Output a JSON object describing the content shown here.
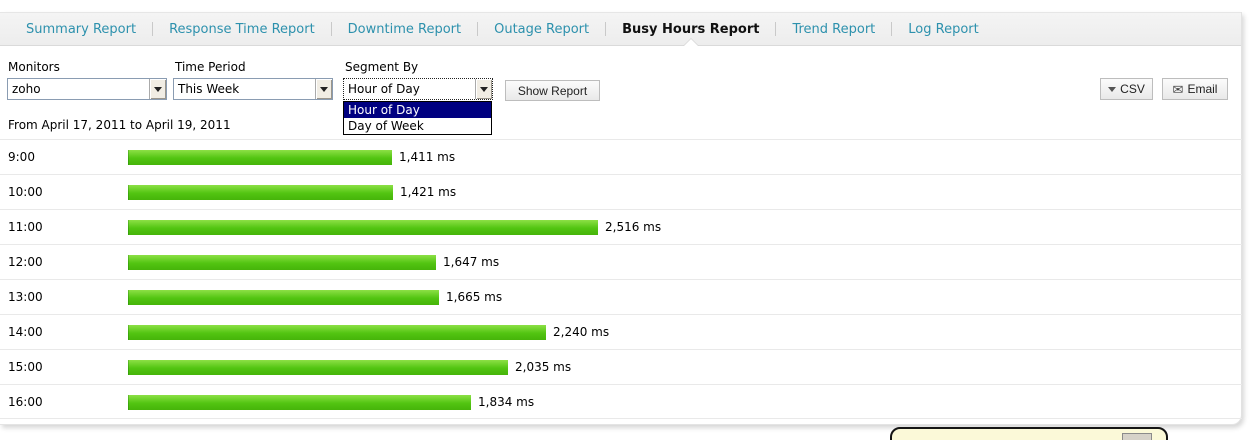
{
  "nav": {
    "tabs": [
      {
        "label": "Summary Report",
        "active": false
      },
      {
        "label": "Response Time Report",
        "active": false
      },
      {
        "label": "Downtime Report",
        "active": false
      },
      {
        "label": "Outage Report",
        "active": false
      },
      {
        "label": "Busy Hours Report",
        "active": true
      },
      {
        "label": "Trend Report",
        "active": false
      },
      {
        "label": "Log Report",
        "active": false
      }
    ]
  },
  "toolbar": {
    "monitors": {
      "label": "Monitors",
      "value": "zoho"
    },
    "time_period": {
      "label": "Time Period",
      "value": "This Week"
    },
    "segment_by": {
      "label": "Segment By",
      "value": "Hour of Day",
      "open": true,
      "options": [
        {
          "label": "Hour of Day",
          "selected": true
        },
        {
          "label": "Day of Week",
          "selected": false
        }
      ]
    },
    "show_report_label": "Show Report",
    "csv_label": "CSV",
    "email_label": "Email"
  },
  "date_range": "From April 17, 2011 to April 19, 2011",
  "chart_data": {
    "type": "bar",
    "orientation": "horizontal",
    "categories": [
      "9:00",
      "10:00",
      "11:00",
      "12:00",
      "13:00",
      "14:00",
      "15:00",
      "16:00"
    ],
    "values": [
      1411,
      1421,
      2516,
      1647,
      1665,
      2240,
      2035,
      1834
    ],
    "value_labels": [
      "1,411 ms",
      "1,421 ms",
      "2,516 ms",
      "1,647 ms",
      "1,665 ms",
      "2,240 ms",
      "2,035 ms",
      "1,834 ms"
    ],
    "unit": "ms",
    "xlim": [
      0,
      2600
    ],
    "grid": false,
    "legend": "none",
    "bar_color": "#4fc30d"
  },
  "icons": {
    "csv_dropdown": "triangle-down-icon",
    "email": "envelope-icon"
  },
  "colors": {
    "tab_link": "#2d91ad",
    "tab_active": "#111111",
    "bar_green": "#4fc30d",
    "dropdown_highlight": "#000080",
    "feedback_bg": "#fbf9d8"
  }
}
